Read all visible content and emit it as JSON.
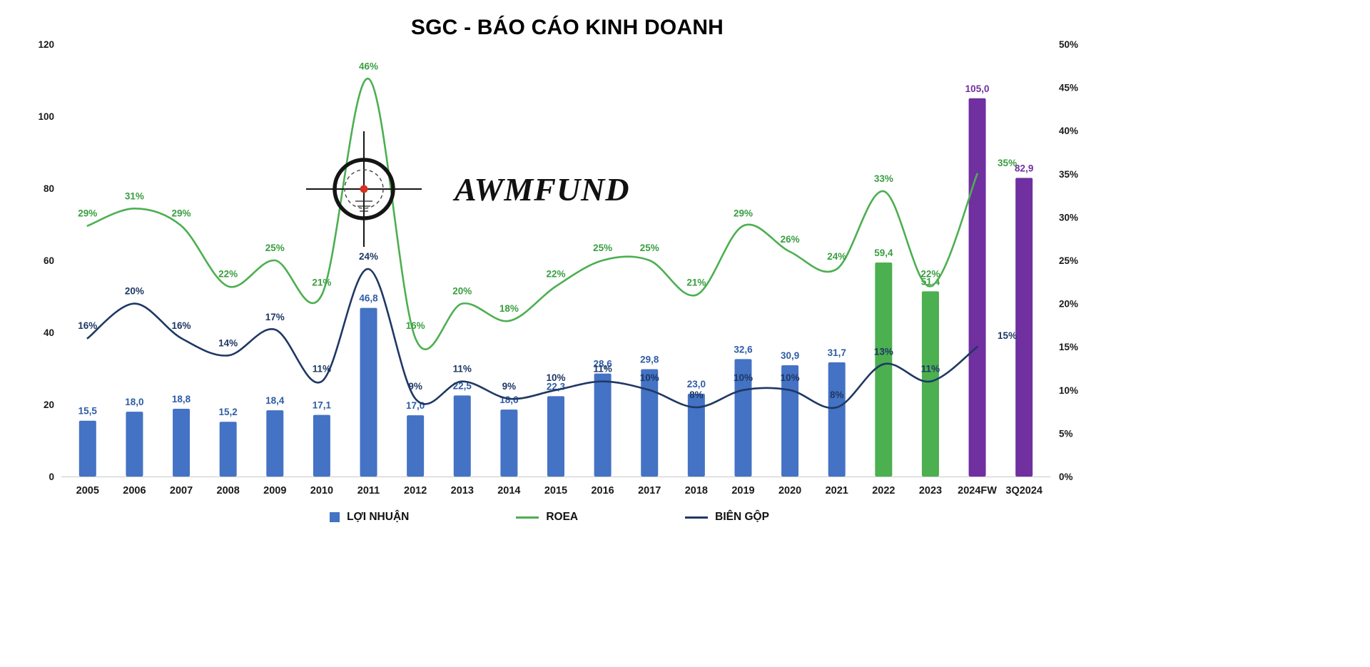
{
  "title": "SGC - BÁO CÁO KINH DOANH",
  "logo_text": "AWMFUND",
  "legend": [
    {
      "label": "LỢI NHUẬN",
      "marker": "bar",
      "color": "#4472c4"
    },
    {
      "label": "ROEA",
      "marker": "line",
      "color": "#4caf50"
    },
    {
      "label": "BIÊN GỘP",
      "marker": "line",
      "color": "#1f3864"
    }
  ],
  "chart_data": {
    "type": "combo-bar-line",
    "title": "SGC - BÁO CÁO KINH DOANH",
    "categories": [
      "2005",
      "2006",
      "2007",
      "2008",
      "2009",
      "2010",
      "2011",
      "2012",
      "2013",
      "2014",
      "2015",
      "2016",
      "2017",
      "2018",
      "2019",
      "2020",
      "2021",
      "2022",
      "2023",
      "2024FW",
      "3Q2024"
    ],
    "left_axis": {
      "min": 0,
      "max": 120,
      "step": 20,
      "ticks": [
        "0",
        "20",
        "40",
        "60",
        "80",
        "100",
        "120"
      ]
    },
    "right_axis": {
      "min": 0,
      "max": 50,
      "step": 5,
      "ticks": [
        "0%",
        "5%",
        "10%",
        "15%",
        "20%",
        "25%",
        "30%",
        "35%",
        "40%",
        "45%",
        "50%"
      ]
    },
    "grid": "off",
    "legend_position": "bottom",
    "bar_series": {
      "name": "LỢI NHUẬN",
      "axis": "left",
      "values": [
        15.5,
        18.0,
        18.8,
        15.2,
        18.4,
        17.1,
        46.8,
        17.0,
        22.5,
        18.6,
        22.3,
        28.6,
        29.8,
        23.0,
        32.6,
        30.9,
        31.7,
        59.4,
        51.4,
        105.0,
        82.9
      ],
      "labels": [
        "15,5",
        "18,0",
        "18,8",
        "15,2",
        "18,4",
        "17,1",
        "46,8",
        "17,0",
        "22,5",
        "18,6",
        "22,3",
        "28,6",
        "29,8",
        "23,0",
        "32,6",
        "30,9",
        "31,7",
        "59,4",
        "51,4",
        "105,0",
        "82,9"
      ],
      "bar_colors": [
        "#4472c4",
        "#4472c4",
        "#4472c4",
        "#4472c4",
        "#4472c4",
        "#4472c4",
        "#4472c4",
        "#4472c4",
        "#4472c4",
        "#4472c4",
        "#4472c4",
        "#4472c4",
        "#4472c4",
        "#4472c4",
        "#4472c4",
        "#4472c4",
        "#4472c4",
        "#4caf50",
        "#4caf50",
        "#7030a0",
        "#7030a0"
      ],
      "label_colors": [
        "#2e5ca6",
        "#2e5ca6",
        "#2e5ca6",
        "#2e5ca6",
        "#2e5ca6",
        "#2e5ca6",
        "#2e5ca6",
        "#2e5ca6",
        "#2e5ca6",
        "#2e5ca6",
        "#2e5ca6",
        "#2e5ca6",
        "#2e5ca6",
        "#2e5ca6",
        "#2e5ca6",
        "#2e5ca6",
        "#2e5ca6",
        "#3a9e41",
        "#3a9e41",
        "#7030a0",
        "#7030a0"
      ]
    },
    "line_series": [
      {
        "name": "ROEA",
        "axis": "right",
        "color": "#4caf50",
        "label_color": "#3a9e41",
        "values": [
          29,
          31,
          29,
          22,
          25,
          21,
          46,
          16,
          20,
          18,
          22,
          25,
          25,
          21,
          29,
          26,
          24,
          33,
          22,
          35,
          null
        ],
        "labels": [
          "29%",
          "31%",
          "29%",
          "22%",
          "25%",
          "21%",
          "46%",
          "16%",
          "20%",
          "18%",
          "22%",
          "25%",
          "25%",
          "21%",
          "29%",
          "26%",
          "24%",
          "33%",
          "22%",
          "35%",
          ""
        ]
      },
      {
        "name": "BIÊN GỘP",
        "axis": "right",
        "color": "#1f3864",
        "label_color": "#1f3864",
        "values": [
          16,
          20,
          16,
          14,
          17,
          11,
          24,
          9,
          11,
          9,
          10,
          11,
          10,
          8,
          10,
          10,
          8,
          13,
          11,
          15,
          null
        ],
        "labels": [
          "16%",
          "20%",
          "16%",
          "14%",
          "17%",
          "11%",
          "24%",
          "9%",
          "11%",
          "9%",
          "10%",
          "11%",
          "10%",
          "8%",
          "10%",
          "10%",
          "8%",
          "13%",
          "11%",
          "15%",
          ""
        ]
      }
    ]
  }
}
